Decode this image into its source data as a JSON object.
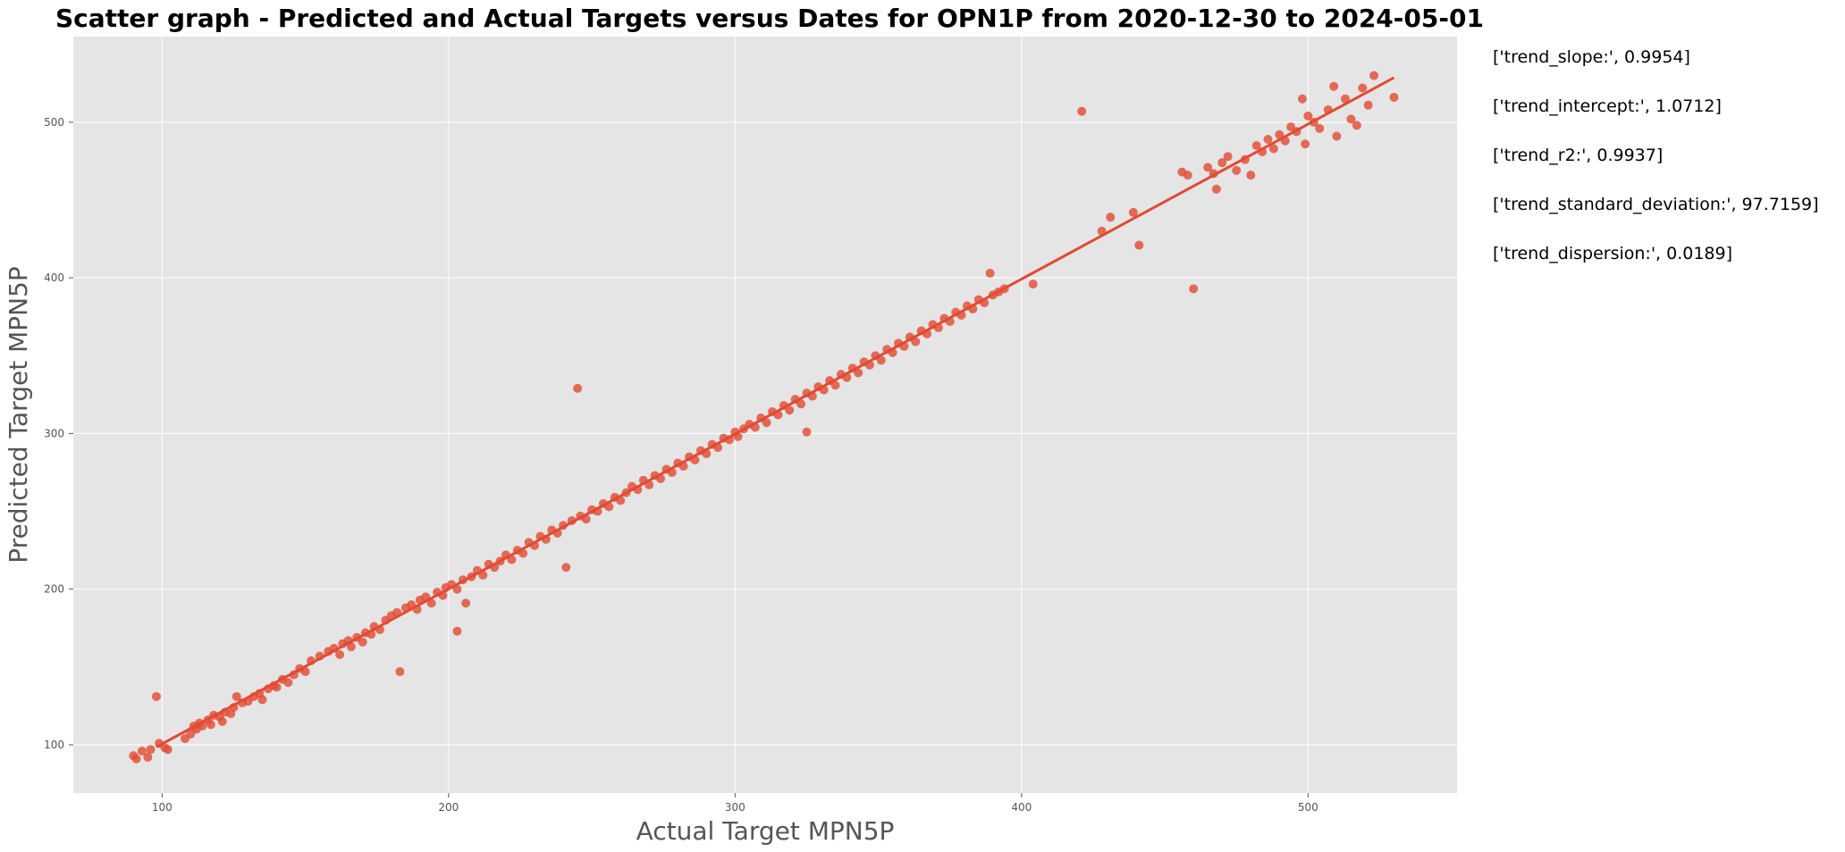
{
  "chart_data": {
    "type": "scatter",
    "title": "Scatter graph - Predicted and Actual Targets versus Dates for OPN1P from 2020-12-30 to 2024-05-01",
    "xlabel": "Actual Target MPN5P",
    "ylabel": "Predicted Target MPN5P",
    "xlim": [
      69,
      552
    ],
    "ylim": [
      69,
      555
    ],
    "xticks": [
      100,
      200,
      300,
      400,
      500
    ],
    "yticks": [
      100,
      200,
      300,
      400,
      500
    ],
    "grid": true,
    "point_color": "#e24a33",
    "background_color": "#e5e5e5",
    "trend_line": {
      "slope": 0.9954,
      "intercept": 1.0712,
      "x_range": [
        98,
        530
      ]
    },
    "points": [
      [
        90,
        93
      ],
      [
        91,
        91
      ],
      [
        93,
        96
      ],
      [
        95,
        92
      ],
      [
        96,
        97
      ],
      [
        98,
        131
      ],
      [
        99,
        101
      ],
      [
        101,
        98
      ],
      [
        102,
        97
      ],
      [
        108,
        104
      ],
      [
        110,
        107
      ],
      [
        111,
        112
      ],
      [
        112,
        110
      ],
      [
        113,
        114
      ],
      [
        114,
        112
      ],
      [
        116,
        116
      ],
      [
        117,
        113
      ],
      [
        118,
        119
      ],
      [
        120,
        118
      ],
      [
        121,
        115
      ],
      [
        122,
        121
      ],
      [
        124,
        120
      ],
      [
        125,
        124
      ],
      [
        126,
        131
      ],
      [
        128,
        127
      ],
      [
        130,
        128
      ],
      [
        132,
        131
      ],
      [
        134,
        133
      ],
      [
        135,
        129
      ],
      [
        137,
        136
      ],
      [
        139,
        138
      ],
      [
        140,
        137
      ],
      [
        142,
        142
      ],
      [
        144,
        140
      ],
      [
        146,
        145
      ],
      [
        148,
        149
      ],
      [
        150,
        147
      ],
      [
        152,
        154
      ],
      [
        155,
        157
      ],
      [
        158,
        160
      ],
      [
        160,
        162
      ],
      [
        162,
        158
      ],
      [
        163,
        165
      ],
      [
        165,
        167
      ],
      [
        166,
        163
      ],
      [
        168,
        169
      ],
      [
        170,
        166
      ],
      [
        171,
        172
      ],
      [
        173,
        171
      ],
      [
        174,
        176
      ],
      [
        176,
        174
      ],
      [
        178,
        180
      ],
      [
        180,
        183
      ],
      [
        182,
        185
      ],
      [
        183,
        147
      ],
      [
        185,
        188
      ],
      [
        187,
        190
      ],
      [
        189,
        187
      ],
      [
        190,
        193
      ],
      [
        192,
        195
      ],
      [
        194,
        191
      ],
      [
        196,
        198
      ],
      [
        198,
        196
      ],
      [
        199,
        201
      ],
      [
        201,
        203
      ],
      [
        203,
        200
      ],
      [
        203,
        173
      ],
      [
        205,
        206
      ],
      [
        206,
        191
      ],
      [
        208,
        208
      ],
      [
        210,
        212
      ],
      [
        212,
        209
      ],
      [
        214,
        216
      ],
      [
        216,
        214
      ],
      [
        218,
        218
      ],
      [
        220,
        222
      ],
      [
        222,
        219
      ],
      [
        224,
        225
      ],
      [
        226,
        223
      ],
      [
        228,
        230
      ],
      [
        230,
        228
      ],
      [
        232,
        234
      ],
      [
        234,
        232
      ],
      [
        236,
        238
      ],
      [
        238,
        236
      ],
      [
        240,
        241
      ],
      [
        241,
        214
      ],
      [
        243,
        244
      ],
      [
        245,
        329
      ],
      [
        246,
        247
      ],
      [
        248,
        245
      ],
      [
        250,
        251
      ],
      [
        252,
        250
      ],
      [
        254,
        255
      ],
      [
        256,
        253
      ],
      [
        258,
        259
      ],
      [
        260,
        257
      ],
      [
        262,
        262
      ],
      [
        264,
        266
      ],
      [
        266,
        264
      ],
      [
        268,
        270
      ],
      [
        270,
        267
      ],
      [
        272,
        273
      ],
      [
        274,
        271
      ],
      [
        276,
        277
      ],
      [
        278,
        275
      ],
      [
        280,
        281
      ],
      [
        282,
        279
      ],
      [
        284,
        285
      ],
      [
        286,
        283
      ],
      [
        288,
        289
      ],
      [
        290,
        287
      ],
      [
        292,
        293
      ],
      [
        294,
        291
      ],
      [
        296,
        297
      ],
      [
        298,
        296
      ],
      [
        300,
        301
      ],
      [
        301,
        298
      ],
      [
        303,
        303
      ],
      [
        305,
        306
      ],
      [
        307,
        304
      ],
      [
        309,
        310
      ],
      [
        311,
        307
      ],
      [
        313,
        314
      ],
      [
        315,
        312
      ],
      [
        317,
        318
      ],
      [
        319,
        315
      ],
      [
        321,
        322
      ],
      [
        323,
        319
      ],
      [
        325,
        326
      ],
      [
        325,
        301
      ],
      [
        327,
        324
      ],
      [
        329,
        330
      ],
      [
        331,
        328
      ],
      [
        333,
        334
      ],
      [
        335,
        331
      ],
      [
        337,
        338
      ],
      [
        339,
        336
      ],
      [
        341,
        342
      ],
      [
        343,
        339
      ],
      [
        345,
        346
      ],
      [
        347,
        344
      ],
      [
        349,
        350
      ],
      [
        351,
        347
      ],
      [
        353,
        354
      ],
      [
        355,
        352
      ],
      [
        357,
        358
      ],
      [
        359,
        356
      ],
      [
        361,
        362
      ],
      [
        363,
        359
      ],
      [
        365,
        366
      ],
      [
        367,
        364
      ],
      [
        369,
        370
      ],
      [
        371,
        368
      ],
      [
        373,
        374
      ],
      [
        375,
        372
      ],
      [
        377,
        378
      ],
      [
        379,
        376
      ],
      [
        381,
        382
      ],
      [
        383,
        380
      ],
      [
        385,
        386
      ],
      [
        387,
        384
      ],
      [
        389,
        403
      ],
      [
        390,
        389
      ],
      [
        392,
        391
      ],
      [
        394,
        393
      ],
      [
        404,
        396
      ],
      [
        421,
        507
      ],
      [
        428,
        430
      ],
      [
        431,
        439
      ],
      [
        439,
        442
      ],
      [
        441,
        421
      ],
      [
        456,
        468
      ],
      [
        458,
        466
      ],
      [
        460,
        393
      ],
      [
        465,
        471
      ],
      [
        467,
        467
      ],
      [
        468,
        457
      ],
      [
        470,
        474
      ],
      [
        472,
        478
      ],
      [
        475,
        469
      ],
      [
        478,
        476
      ],
      [
        480,
        466
      ],
      [
        482,
        485
      ],
      [
        484,
        481
      ],
      [
        486,
        489
      ],
      [
        488,
        483
      ],
      [
        490,
        492
      ],
      [
        492,
        488
      ],
      [
        494,
        497
      ],
      [
        496,
        494
      ],
      [
        498,
        515
      ],
      [
        499,
        486
      ],
      [
        500,
        504
      ],
      [
        502,
        500
      ],
      [
        504,
        496
      ],
      [
        507,
        508
      ],
      [
        509,
        523
      ],
      [
        510,
        491
      ],
      [
        513,
        515
      ],
      [
        515,
        502
      ],
      [
        517,
        498
      ],
      [
        519,
        522
      ],
      [
        521,
        511
      ],
      [
        523,
        530
      ],
      [
        530,
        516
      ]
    ]
  },
  "stats": [
    "['trend_slope:', 0.9954]",
    "['trend_intercept:', 1.0712]",
    "['trend_r2:', 0.9937]",
    "['trend_standard_deviation:', 97.7159]",
    "['trend_dispersion:', 0.0189]"
  ]
}
